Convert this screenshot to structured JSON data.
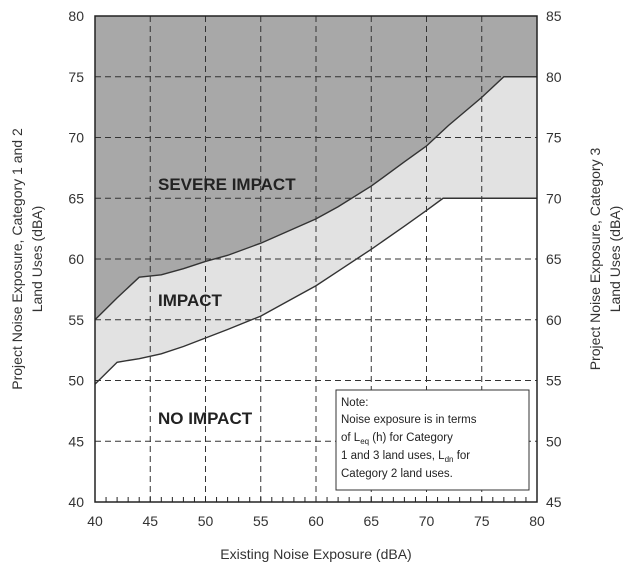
{
  "chart_data": {
    "type": "area",
    "x_axis": {
      "label": "Existing Noise Exposure (dBA)",
      "range": [
        40,
        80
      ],
      "ticks": [
        "40",
        "45",
        "50",
        "55",
        "60",
        "65",
        "70",
        "75",
        "80"
      ]
    },
    "y_axis_left": {
      "label_line1": "Project Noise Exposure, Category 1 and 2",
      "label_line2": "Land Uses (dBA)",
      "range": [
        40,
        80
      ],
      "ticks": [
        "40",
        "45",
        "50",
        "55",
        "60",
        "65",
        "70",
        "75",
        "80"
      ]
    },
    "y_axis_right": {
      "label_line1": "Project Noise Exposure, Category 3",
      "label_line2": "Land Uses (dBA)",
      "range": [
        45,
        85
      ],
      "ticks": [
        "45",
        "50",
        "55",
        "60",
        "65",
        "70",
        "75",
        "80",
        "85"
      ]
    },
    "series": [
      {
        "name": "SEVERE IMPACT",
        "x": [
          40,
          42,
          44,
          46,
          48,
          50,
          52,
          55,
          58,
          60,
          62,
          65,
          68,
          70,
          72,
          75,
          77,
          80
        ],
        "y": [
          55.0,
          56.8,
          58.5,
          58.7,
          59.2,
          59.8,
          60.3,
          61.3,
          62.5,
          63.3,
          64.3,
          66.0,
          68.0,
          69.3,
          71.0,
          73.3,
          75.0,
          75.0
        ],
        "fill": "#a8a8a8"
      },
      {
        "name": "IMPACT",
        "x": [
          40,
          42,
          44,
          46,
          48,
          50,
          52,
          55,
          58,
          60,
          62,
          65,
          68,
          70,
          71.5,
          80
        ],
        "y": [
          49.7,
          51.5,
          51.8,
          52.2,
          52.8,
          53.5,
          54.2,
          55.3,
          56.8,
          57.8,
          59.0,
          60.8,
          62.7,
          64.0,
          65.0,
          65.0
        ],
        "fill": "#e2e2e2"
      }
    ],
    "region_labels": [
      "SEVERE IMPACT",
      "IMPACT",
      "NO IMPACT"
    ],
    "grid": true,
    "note": {
      "line1": "Note:",
      "line2": "Noise exposure is in terms",
      "line3_prefix": "of L",
      "line3_sub": "eq",
      "line3_suffix": " (h) for Category",
      "line4_prefix": "1 and 3 land uses, L",
      "line4_sub": "dn",
      "line4_suffix": "  for",
      "line5": "Category 2 land uses."
    }
  }
}
